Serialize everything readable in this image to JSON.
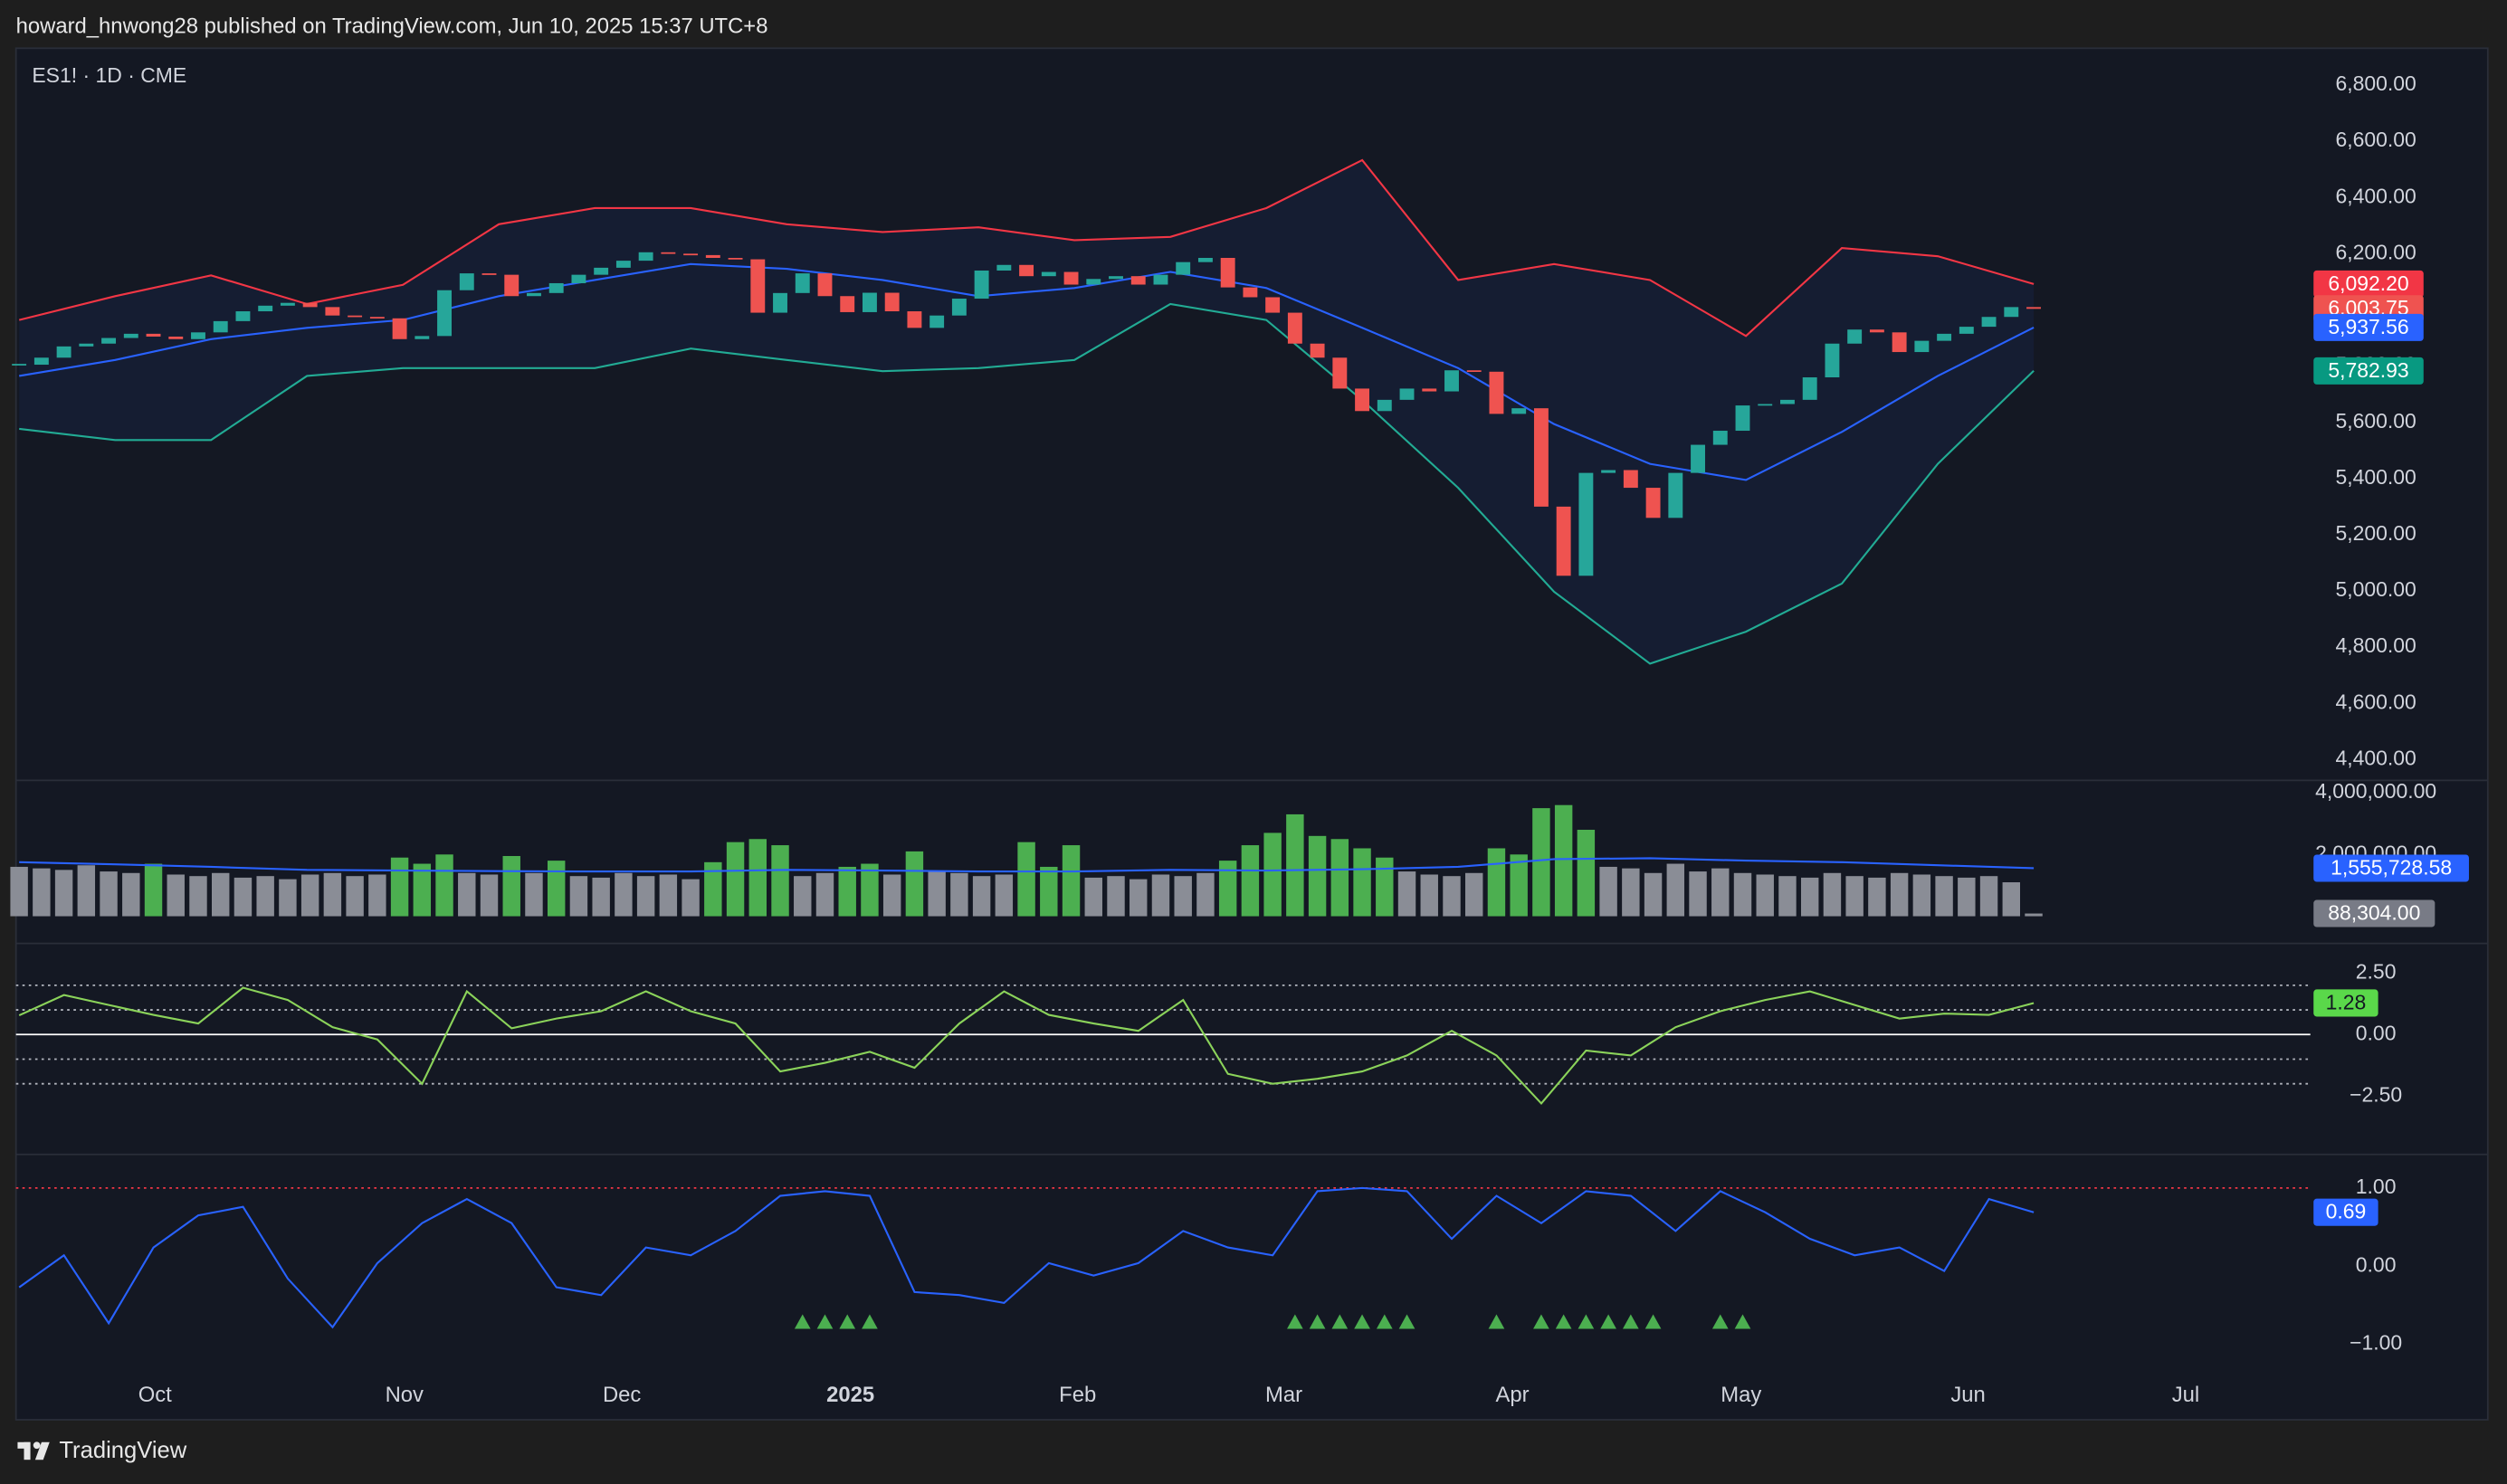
{
  "header": {
    "text": "howard_hnwong28 published on TradingView.com, Jun 10, 2025 15:37 UTC+8"
  },
  "footer": {
    "brand": "TradingView"
  },
  "chart_data": [
    {
      "type": "candlestick",
      "title": "ES1! · 1D · CME",
      "close": [
        5805,
        5830,
        5870,
        5880,
        5900,
        5915,
        5905,
        5896,
        5920,
        5960,
        5995,
        6015,
        6025,
        6010,
        5980,
        5975,
        5970,
        5896,
        5907,
        6070,
        6130,
        6125,
        6049,
        6060,
        6095,
        6125,
        6150,
        6175,
        6205,
        6200,
        6195,
        6185,
        6180,
        5990,
        6060,
        6130,
        6049,
        5992,
        6061,
        5995,
        5936,
        5980,
        6040,
        6140,
        6160,
        6120,
        6135,
        6090,
        6110,
        6120,
        6090,
        6125,
        6170,
        6185,
        6080,
        6045,
        5990,
        5880,
        5830,
        5720,
        5640,
        5680,
        5720,
        5710,
        5785,
        5780,
        5630,
        5650,
        5300,
        5054,
        5420,
        5430,
        5367,
        5260,
        5420,
        5520,
        5570,
        5660,
        5665,
        5680,
        5760,
        5880,
        5930,
        5920,
        5850,
        5890,
        5915,
        5940,
        5975,
        6010,
        6003.75
      ],
      "up_color": "#26a69a",
      "down_color": "#ef5350",
      "xlim": [
        -0.14,
        102.36
      ],
      "xticks": [
        {
          "value": 6.07,
          "label": "Oct"
        },
        {
          "value": 17.21,
          "label": "Nov"
        },
        {
          "value": 26.93,
          "label": "Dec"
        },
        {
          "value": 37.14,
          "label": "2025"
        },
        {
          "value": 47.29,
          "label": "Feb"
        },
        {
          "value": 56.5,
          "label": "Mar"
        },
        {
          "value": 66.71,
          "label": "Apr"
        },
        {
          "value": 76.93,
          "label": "May"
        },
        {
          "value": 87.07,
          "label": "Jun"
        },
        {
          "value": 96.79,
          "label": "Jul"
        }
      ],
      "ylim": [
        4326,
        6931
      ],
      "yticks": [
        {
          "value": 6800,
          "label": "6,800.00"
        },
        {
          "value": 6600,
          "label": "6,600.00"
        },
        {
          "value": 6400,
          "label": "6,400.00"
        },
        {
          "value": 6200,
          "label": "6,200.00"
        },
        {
          "value": 6000,
          "label": "6,000.00"
        },
        {
          "value": 5800,
          "label": "5,800.00"
        },
        {
          "value": 5600,
          "label": "5,600.00"
        },
        {
          "value": 5400,
          "label": "5,400.00"
        },
        {
          "value": 5200,
          "label": "5,200.00"
        },
        {
          "value": 5000,
          "label": "5,000.00"
        },
        {
          "value": 4800,
          "label": "4,800.00"
        },
        {
          "value": 4600,
          "label": "4,600.00"
        },
        {
          "value": 4400,
          "label": "4,400.00"
        }
      ],
      "band_fill": "rgba(41,98,255,0.07)",
      "series": [
        {
          "color": "#f23645",
          "values": [
            5964,
            6049,
            6123,
            6021,
            6089,
            6305,
            6362,
            6362,
            6305,
            6277,
            6294,
            6248,
            6260,
            6362,
            6533,
            6106,
            6163,
            6106,
            5907,
            6220,
            6191,
            6092.2
          ]
        },
        {
          "color": "#2962ff",
          "values": [
            5765,
            5822,
            5896,
            5936,
            5964,
            6049,
            6106,
            6163,
            6146,
            6106,
            6049,
            6078,
            6135,
            6078,
            5936,
            5793,
            5594,
            5452,
            5395,
            5566,
            5765,
            5937.56
          ]
        },
        {
          "color": "#22ab94",
          "values": [
            5577,
            5537,
            5537,
            5765,
            5793,
            5793,
            5793,
            5862,
            5822,
            5782,
            5793,
            5822,
            6021,
            5964,
            5679,
            5367,
            4997,
            4741,
            4855,
            5026,
            5452,
            5782.93
          ]
        }
      ],
      "price_labels": [
        {
          "value": 6092.2,
          "label": "6,092.20",
          "color": "#f23645"
        },
        {
          "value": 6003.75,
          "label": "6,003.75",
          "color": "#ef5350"
        },
        {
          "value": 5937.56,
          "label": "5,937.56",
          "color": "#2962ff"
        },
        {
          "value": 5782.93,
          "label": "5,782.93",
          "color": "#089981"
        }
      ]
    },
    {
      "type": "volume",
      "values": [
        1600000,
        1550000,
        1500000,
        1650000,
        1450000,
        1400000,
        1700000,
        1350000,
        1300000,
        1400000,
        1250000,
        1300000,
        1200000,
        1350000,
        1400000,
        1300000,
        1350000,
        1900000,
        1700000,
        2000000,
        1400000,
        1350000,
        1950000,
        1400000,
        1800000,
        1300000,
        1250000,
        1400000,
        1300000,
        1350000,
        1200000,
        1750000,
        2400000,
        2500000,
        2300000,
        1300000,
        1400000,
        1600000,
        1700000,
        1350000,
        2100000,
        1450000,
        1400000,
        1300000,
        1350000,
        2400000,
        1600000,
        2300000,
        1250000,
        1300000,
        1200000,
        1350000,
        1300000,
        1400000,
        1800000,
        2300000,
        2700000,
        3300000,
        2600000,
        2500000,
        2200000,
        1900000,
        1450000,
        1350000,
        1300000,
        1400000,
        2200000,
        2000000,
        3500000,
        3600000,
        2800000,
        1600000,
        1550000,
        1400000,
        1700000,
        1450000,
        1550000,
        1400000,
        1350000,
        1300000,
        1250000,
        1400000,
        1300000,
        1250000,
        1400000,
        1350000,
        1300000,
        1250000,
        1300000,
        1100000,
        88304
      ],
      "above_color": "#4caf50",
      "below_color": "#8a8d96",
      "ylim": [
        -880000,
        4400000
      ],
      "yticks": [
        {
          "value": 4000000,
          "label": "4,000,000.00"
        },
        {
          "value": 2000000,
          "label": "2,000,000.00"
        }
      ],
      "series": [
        {
          "color": "#2962ff",
          "values": [
            1750000,
            1680000,
            1600000,
            1500000,
            1480000,
            1460000,
            1450000,
            1450000,
            1500000,
            1480000,
            1450000,
            1450000,
            1500000,
            1480000,
            1520000,
            1600000,
            1850000,
            1880000,
            1800000,
            1750000,
            1650000,
            1555728.58
          ]
        }
      ],
      "price_labels": [
        {
          "value": 1555728.58,
          "label": "1,555,728.58",
          "color": "#2962ff"
        },
        {
          "value": 88304,
          "label": "88,304.00",
          "color": "#787b86"
        }
      ]
    },
    {
      "type": "line",
      "ylim": [
        -4.87,
        3.7
      ],
      "yticks": [
        {
          "value": 2.5,
          "label": "2.50"
        },
        {
          "value": 0,
          "label": "0.00"
        },
        {
          "value": -2.5,
          "label": "−2.50"
        }
      ],
      "levels": [
        {
          "value": 2,
          "style": "dotted",
          "color": "#b2b5be"
        },
        {
          "value": 1,
          "style": "dotted",
          "color": "#b2b5be"
        },
        {
          "value": 0,
          "style": "solid",
          "color": "#ffffff"
        },
        {
          "value": -1,
          "style": "dotted",
          "color": "#b2b5be"
        },
        {
          "value": -2,
          "style": "dotted",
          "color": "#b2b5be"
        }
      ],
      "series": [
        {
          "color": "#8bd35a",
          "values": [
            0.78,
            1.6,
            1.2,
            0.8,
            0.45,
            1.9,
            1.4,
            0.3,
            -0.2,
            -2.0,
            1.75,
            0.25,
            0.65,
            0.95,
            1.75,
            0.95,
            0.45,
            -1.5,
            -1.15,
            -0.7,
            -1.35,
            0.45,
            1.75,
            0.8,
            0.45,
            0.15,
            1.4,
            -1.6,
            -2.0,
            -1.8,
            -1.5,
            -0.85,
            0.15,
            -0.85,
            -2.8,
            -0.65,
            -0.85,
            0.3,
            0.95,
            1.4,
            1.75,
            1.2,
            0.65,
            0.85,
            0.8,
            1.28
          ]
        }
      ],
      "price_labels": [
        {
          "value": 1.28,
          "label": "1.28",
          "color": "#5ad84a",
          "text_color": "#131722"
        }
      ]
    },
    {
      "type": "line",
      "ylim": [
        -1.29,
        1.43
      ],
      "yticks": [
        {
          "value": 1,
          "label": "1.00"
        },
        {
          "value": 0,
          "label": "0.00"
        },
        {
          "value": -1,
          "label": "−1.00"
        }
      ],
      "levels": [
        {
          "value": 1,
          "style": "dotted",
          "color": "#f23645"
        }
      ],
      "series": [
        {
          "color": "#2962ff",
          "values": [
            -0.27,
            0.14,
            -0.73,
            0.24,
            0.65,
            0.76,
            -0.16,
            -0.78,
            0.04,
            0.55,
            0.86,
            0.55,
            -0.27,
            -0.37,
            0.24,
            0.14,
            0.45,
            0.9,
            0.96,
            0.9,
            -0.33,
            -0.37,
            -0.47,
            0.04,
            -0.12,
            0.04,
            0.45,
            0.24,
            0.14,
            0.96,
            1.0,
            0.96,
            0.35,
            0.9,
            0.55,
            0.96,
            0.9,
            0.45,
            0.96,
            0.69,
            0.35,
            0.14,
            0.24,
            -0.06,
            0.86,
            0.69
          ]
        }
      ],
      "signals": [
        35,
        36,
        37,
        38,
        57,
        58,
        59,
        60,
        61,
        62,
        66,
        68,
        69,
        70,
        71,
        72,
        73,
        76,
        77
      ],
      "signal_color": "#4caf50",
      "price_labels": [
        {
          "value": 0.69,
          "label": "0.69",
          "color": "#2962ff"
        }
      ]
    }
  ]
}
